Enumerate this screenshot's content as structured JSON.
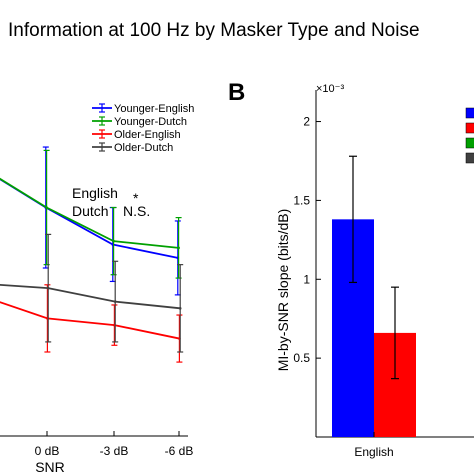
{
  "figure": {
    "title": "Information at 100 Hz by Masker Type and Noise",
    "panel_b_letter": "B"
  },
  "chart_data": [
    {
      "type": "line",
      "xlabel": "SNR",
      "x_categories": [
        "",
        "0 dB",
        "-3 dB",
        "-6 dB"
      ],
      "legend_placement": "top-right",
      "annotations": [
        {
          "label": "English",
          "value": "*"
        },
        {
          "label": "Dutch",
          "value": "N.S."
        }
      ],
      "ylim": [
        0,
        1
      ],
      "series": [
        {
          "name": "Younger-English",
          "color": "#0000ff",
          "values": [
            0.77,
            0.68,
            0.57,
            0.53
          ],
          "err": [
            null,
            0.18,
            0.11,
            0.11
          ]
        },
        {
          "name": "Younger-Dutch",
          "color": "#00a000",
          "values": [
            0.77,
            0.68,
            0.58,
            0.56
          ],
          "err": [
            null,
            0.17,
            0.1,
            0.09
          ]
        },
        {
          "name": "Older-English",
          "color": "#ff0000",
          "values": [
            0.4,
            0.35,
            0.33,
            0.29
          ],
          "err": [
            null,
            0.1,
            0.06,
            0.07
          ]
        },
        {
          "name": "Older-Dutch",
          "color": "#404040",
          "values": [
            0.45,
            0.44,
            0.4,
            0.38
          ],
          "err": [
            null,
            0.16,
            0.12,
            0.13
          ]
        }
      ]
    },
    {
      "type": "bar",
      "ylabel": "MI-by-SNR slope (bits/dB)",
      "y_exponent_label": "×10⁻³",
      "ylim": [
        0,
        2.2
      ],
      "yticks": [
        0.5,
        1,
        1.5,
        2
      ],
      "ytick_labels": [
        "0.5",
        "1",
        "1.5",
        "2"
      ],
      "categories": [
        "English"
      ],
      "series": [
        {
          "color": "#0000ff",
          "values": [
            1.38
          ],
          "err": [
            0.4
          ]
        },
        {
          "color": "#ff0000",
          "values": [
            0.66
          ],
          "err": [
            0.29
          ]
        }
      ],
      "legend_swatches": [
        "#0000ff",
        "#ff0000",
        "#00a000",
        "#404040"
      ]
    }
  ]
}
